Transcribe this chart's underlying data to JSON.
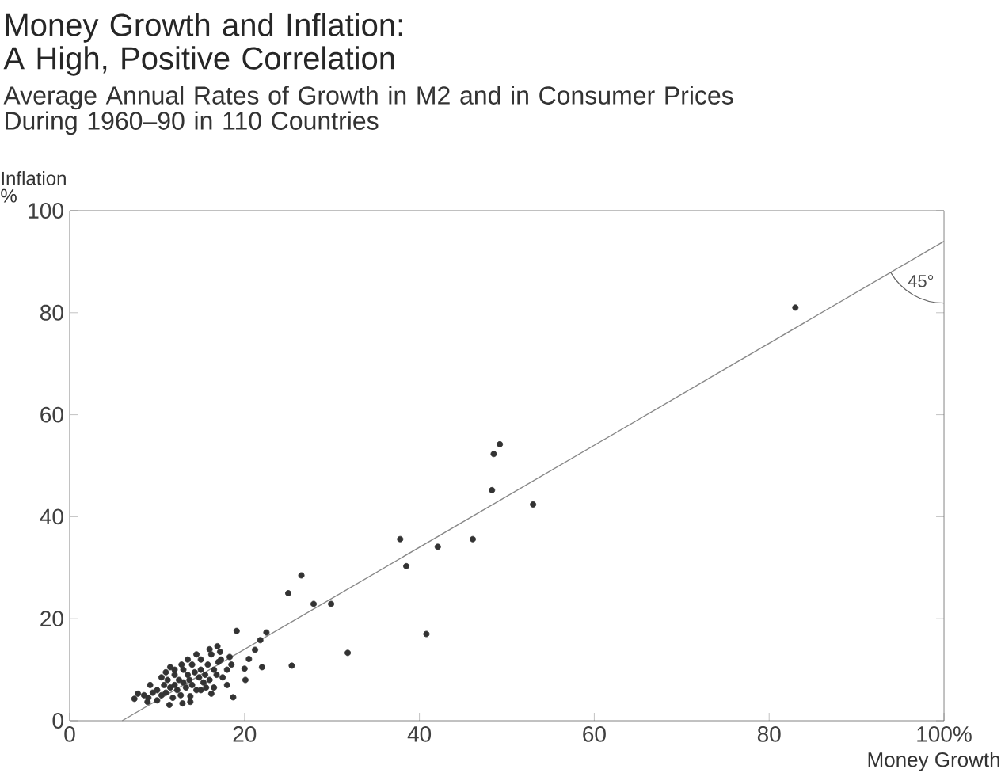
{
  "chart_data": {
    "type": "scatter",
    "title": "Money Growth and Inflation: A High, Positive Correlation",
    "subtitle": "Average Annual Rates of Growth in M2 and in Consumer Prices During 1960–90 in 110 Countries",
    "xlabel": "Money Growth",
    "ylabel": "Inflation %",
    "annotations": [
      "45°"
    ],
    "xlim": [
      0,
      100
    ],
    "ylim": [
      0,
      100
    ],
    "xticks": [
      0,
      20,
      40,
      60,
      80,
      {
        "value": 100,
        "label": "100%"
      }
    ],
    "yticks": [
      0,
      20,
      40,
      60,
      80,
      100
    ],
    "series": [
      {
        "type": "scatter",
        "marker": "circle",
        "color": "#333333",
        "x": [
          83,
          49.2,
          48.5,
          48.3,
          53,
          37.8,
          42.1,
          46.1,
          38.5,
          26.5,
          25,
          27.9,
          29.9,
          40.8,
          31.8,
          25.4,
          22.5,
          21.8,
          21.2,
          22,
          19.1,
          16.9,
          20.5,
          20,
          20.1,
          18.7,
          16.2,
          15.6,
          7.4,
          7.8,
          8.9,
          11.4,
          12.9,
          13.8,
          8.5,
          9,
          9.5,
          10,
          10,
          10.5,
          10.8,
          11,
          11.2,
          11.5,
          11.8,
          12,
          12,
          12.3,
          12.5,
          12.7,
          13,
          13,
          13.3,
          13.5,
          13.7,
          14,
          14,
          14.3,
          14.5,
          14.8,
          15,
          15,
          15.3,
          15.5,
          15.8,
          16,
          16.2,
          16.5,
          16.8,
          17,
          17.3,
          17.5,
          18,
          18.3,
          18.5,
          12,
          11,
          10.5,
          13.5,
          14.5,
          16,
          17.2,
          9.2,
          12.8,
          18,
          15,
          13.8,
          11.5,
          16.5
        ],
        "values": [
          81,
          54.2,
          52.3,
          45.2,
          42.4,
          35.6,
          34.1,
          35.6,
          30.3,
          28.5,
          25,
          22.9,
          22.9,
          17,
          13.3,
          10.8,
          17.3,
          15.8,
          13.9,
          10.5,
          17.6,
          14.6,
          12.1,
          10.2,
          8,
          4.6,
          5.3,
          6.5,
          4.3,
          5.3,
          3.7,
          3.1,
          3.4,
          3.7,
          5,
          4.5,
          5.5,
          4,
          6,
          5,
          7,
          5.5,
          8,
          6.5,
          4.5,
          7,
          9,
          6,
          8,
          5,
          7.5,
          10,
          6.5,
          9,
          8,
          7,
          11,
          9.5,
          6,
          8.5,
          10,
          12,
          7.5,
          9,
          11,
          8,
          13,
          10,
          9,
          11.5,
          12,
          8.5,
          10,
          12.5,
          11,
          10,
          9.5,
          8.5,
          12,
          13,
          14,
          13.5,
          7,
          11,
          7,
          6,
          4.8,
          10.5,
          6.5
        ]
      },
      {
        "type": "line",
        "marker": "none",
        "color": "#888888",
        "x": [
          6,
          100
        ],
        "values": [
          0,
          94
        ]
      }
    ]
  }
}
